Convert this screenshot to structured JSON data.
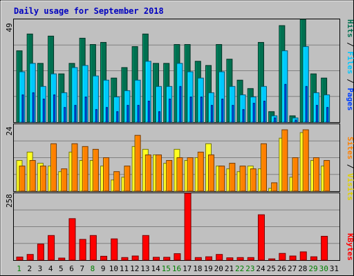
{
  "colors": {
    "background": "#c0c0c0",
    "plot": "#c0c0c0",
    "title": "#0000c0",
    "hits": "#007050",
    "files": "#00c8ff",
    "pages": "#0040ff",
    "visits": "#ffff20",
    "sites": "#ff8000",
    "kbytes": "#ff0000",
    "weekend_day": "#008000",
    "weekday": "#000000",
    "gridline": "#808080"
  },
  "chart_data": [
    {
      "type": "bar",
      "title": "Daily usage for September 2018",
      "panel": "hits-files-pages",
      "y_axis_max_label": "49",
      "legend": [
        "Hits",
        "/",
        "Files",
        "/",
        "Pages"
      ],
      "ylim": [
        0,
        49
      ],
      "grid": true,
      "categories": [
        "1",
        "2",
        "3",
        "4",
        "5",
        "6",
        "7",
        "8",
        "9",
        "10",
        "11",
        "12",
        "13",
        "14",
        "15",
        "16",
        "17",
        "18",
        "19",
        "20",
        "21",
        "22",
        "23",
        "24",
        "25",
        "26",
        "27",
        "28",
        "29",
        "30",
        "31"
      ],
      "series": [
        {
          "name": "Hits",
          "values": [
            34,
            42,
            28,
            41,
            23,
            28,
            40,
            37,
            38,
            21,
            26,
            36,
            42,
            28,
            28,
            37,
            37,
            29,
            27,
            37,
            30,
            20,
            16,
            38,
            5,
            46,
            3,
            49,
            23,
            21,
            0
          ]
        },
        {
          "name": "Files",
          "values": [
            24,
            28,
            17,
            23,
            14,
            26,
            27,
            22,
            20,
            12,
            15,
            20,
            29,
            17,
            17,
            28,
            24,
            21,
            14,
            24,
            17,
            13,
            12,
            17,
            3,
            34,
            2,
            36,
            14,
            13,
            0
          ]
        },
        {
          "name": "Pages",
          "values": [
            13,
            14,
            11,
            13,
            7,
            8,
            12,
            6,
            7,
            5,
            8,
            8,
            10,
            5,
            11,
            17,
            12,
            12,
            8,
            11,
            8,
            6,
            9,
            10,
            2,
            18,
            1,
            17,
            8,
            7,
            0
          ]
        }
      ]
    },
    {
      "type": "bar",
      "panel": "visits-sites",
      "y_axis_max_label": "24",
      "legend": [
        "Sites",
        "/",
        "Visits"
      ],
      "ylim": [
        0,
        24
      ],
      "grid": true,
      "series": [
        {
          "name": "Visits",
          "values": [
            11,
            14,
            10,
            9,
            7,
            14,
            11,
            11,
            9,
            4,
            5,
            16,
            15,
            13,
            10,
            15,
            11,
            12,
            17,
            9,
            8,
            7,
            9,
            8,
            1,
            19,
            5,
            21,
            11,
            9,
            0
          ]
        },
        {
          "name": "Sites",
          "values": [
            9,
            11,
            9,
            17,
            8,
            17,
            16,
            15,
            12,
            7,
            9,
            20,
            13,
            13,
            11,
            12,
            12,
            14,
            13,
            9,
            10,
            9,
            8,
            17,
            3,
            22,
            12,
            22,
            12,
            11,
            0
          ]
        }
      ]
    },
    {
      "type": "bar",
      "panel": "kbytes",
      "y_axis_max_label": "258",
      "legend": [
        "KBytes"
      ],
      "ylim": [
        0,
        258
      ],
      "grid": true,
      "series": [
        {
          "name": "KBytes",
          "values": [
            12,
            22,
            62,
            95,
            8,
            160,
            80,
            95,
            15,
            82,
            10,
            16,
            95,
            11,
            11,
            25,
            258,
            10,
            13,
            22,
            9,
            10,
            10,
            175,
            5,
            26,
            16,
            32,
            13,
            92,
            0
          ]
        }
      ]
    }
  ],
  "x_axis": {
    "days": [
      "1",
      "2",
      "3",
      "4",
      "5",
      "6",
      "7",
      "8",
      "9",
      "10",
      "11",
      "12",
      "13",
      "14",
      "15",
      "16",
      "17",
      "18",
      "19",
      "20",
      "21",
      "22",
      "23",
      "24",
      "25",
      "26",
      "27",
      "28",
      "29",
      "30",
      "31"
    ],
    "weekend_days": [
      "1",
      "8",
      "15",
      "16",
      "22",
      "23",
      "29",
      "30"
    ]
  }
}
